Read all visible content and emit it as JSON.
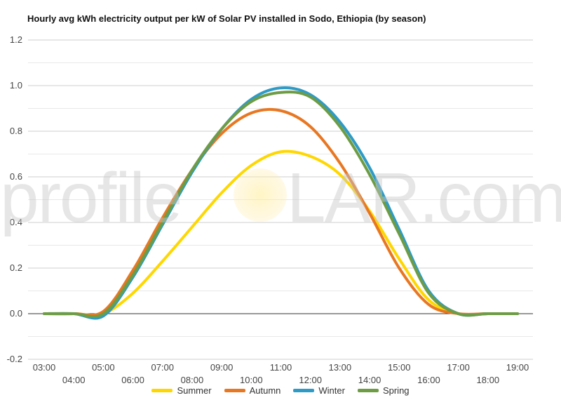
{
  "chart_data": {
    "type": "line",
    "title": "Hourly avg kWh electricity output per kW of Solar PV installed in Sodo, Ethiopia (by season)",
    "xlabel": "",
    "ylabel": "",
    "ylim": [
      -0.2,
      1.2
    ],
    "yticks": [
      -0.2,
      0.0,
      0.2,
      0.4,
      0.6,
      0.8,
      1.0,
      1.2
    ],
    "ytick_labels": [
      "-0.2",
      "0.0",
      "0.2",
      "0.4",
      "0.6",
      "0.8",
      "1.0",
      "1.2"
    ],
    "x": [
      "03:00",
      "04:00",
      "05:00",
      "06:00",
      "07:00",
      "08:00",
      "09:00",
      "10:00",
      "11:00",
      "12:00",
      "13:00",
      "14:00",
      "15:00",
      "16:00",
      "17:00",
      "18:00",
      "19:00"
    ],
    "grid": true,
    "legend": "bottom",
    "series": [
      {
        "name": "Summer",
        "color": "#FFD700",
        "values": [
          0,
          0,
          0,
          0.09,
          0.23,
          0.38,
          0.53,
          0.65,
          0.71,
          0.69,
          0.61,
          0.45,
          0.24,
          0.06,
          0,
          0,
          0
        ]
      },
      {
        "name": "Autumn",
        "color": "#E87722",
        "values": [
          0,
          0,
          0.01,
          0.19,
          0.42,
          0.63,
          0.79,
          0.88,
          0.89,
          0.82,
          0.66,
          0.44,
          0.2,
          0.04,
          0,
          0,
          0
        ]
      },
      {
        "name": "Winter",
        "color": "#2E9BC6",
        "values": [
          0,
          0,
          -0.01,
          0.16,
          0.39,
          0.62,
          0.81,
          0.94,
          0.99,
          0.96,
          0.84,
          0.64,
          0.37,
          0.1,
          0,
          0,
          0
        ]
      },
      {
        "name": "Spring",
        "color": "#6E9C45",
        "values": [
          0,
          0,
          0,
          0.17,
          0.4,
          0.63,
          0.81,
          0.93,
          0.97,
          0.95,
          0.82,
          0.61,
          0.35,
          0.09,
          0,
          0,
          0
        ]
      }
    ]
  },
  "watermark": {
    "left": "profile",
    "right": "LAR.com"
  }
}
